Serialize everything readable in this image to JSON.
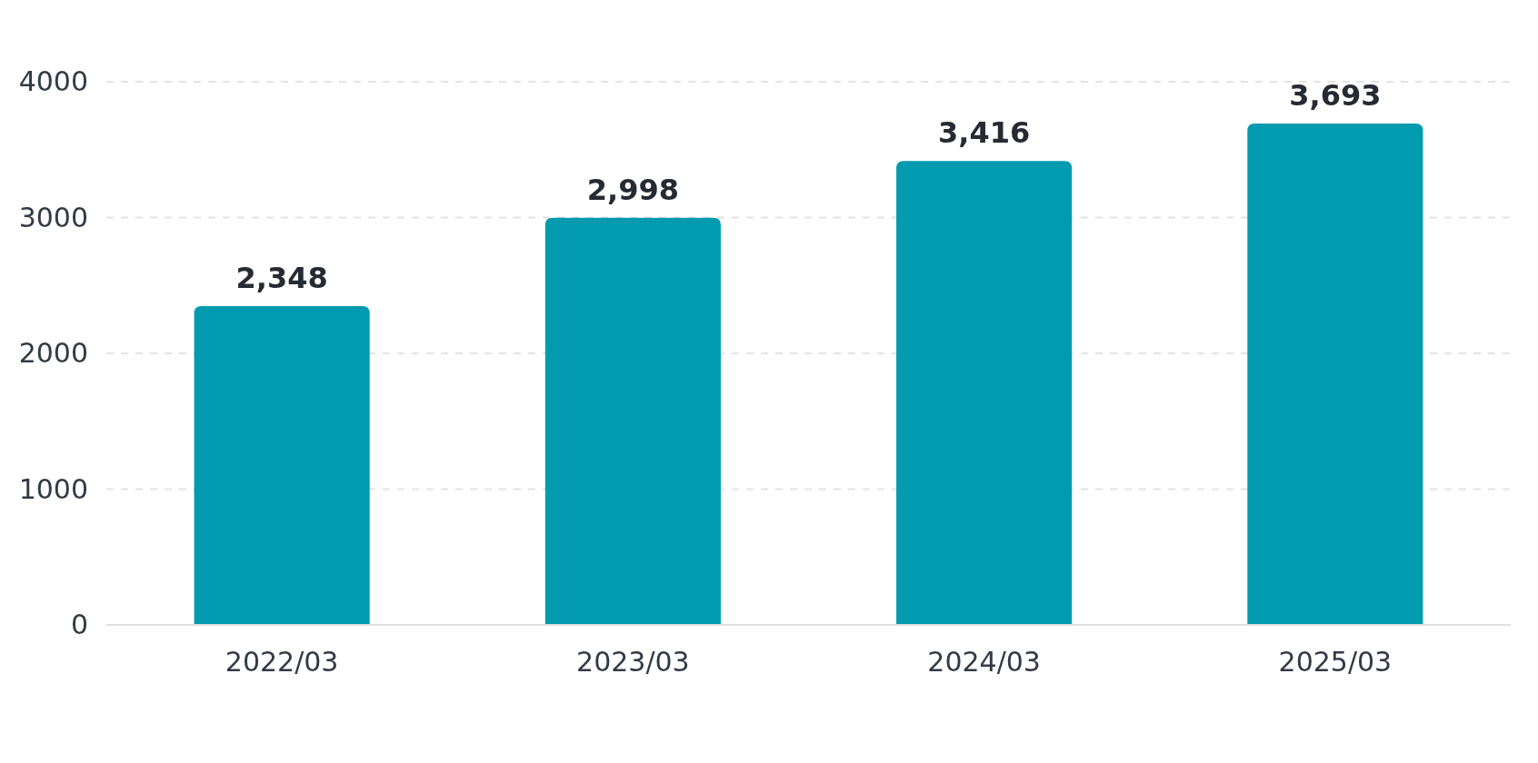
{
  "chart_data": {
    "type": "bar",
    "categories": [
      "2022/03",
      "2023/03",
      "2024/03",
      "2025/03"
    ],
    "values": [
      2348,
      2998,
      3416,
      3693
    ],
    "value_labels": [
      "2,348",
      "2,998",
      "3,416",
      "3,693"
    ],
    "color": "#029aaf",
    "ylim": [
      0,
      4000
    ],
    "yticks": [
      0,
      1000,
      2000,
      3000,
      4000
    ],
    "grid": "y"
  }
}
